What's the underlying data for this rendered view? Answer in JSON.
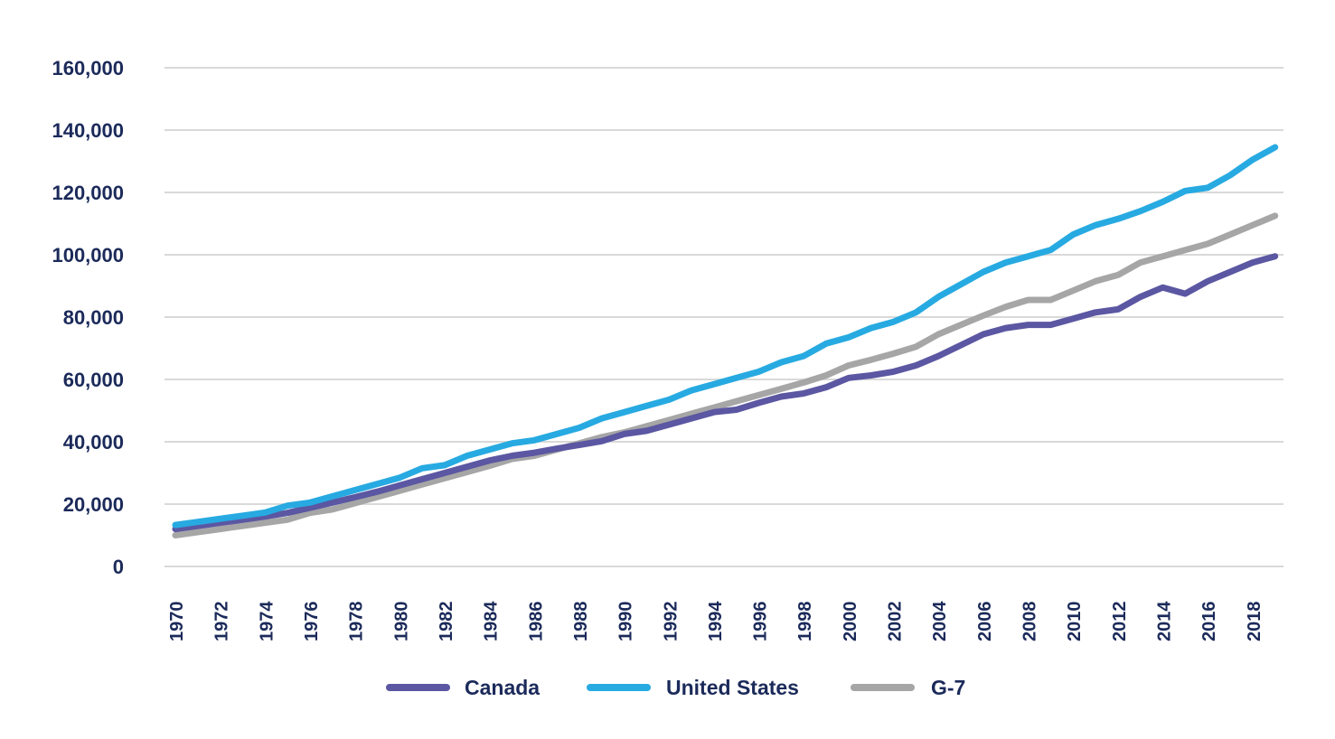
{
  "chart_data": {
    "type": "line",
    "title": "",
    "xlabel": "",
    "ylabel": "",
    "ylim": [
      0,
      160000
    ],
    "yticks": [
      0,
      20000,
      40000,
      60000,
      80000,
      100000,
      120000,
      140000,
      160000
    ],
    "ytick_labels": [
      "0",
      "20,000",
      "40,000",
      "60,000",
      "80,000",
      "100,000",
      "120,000",
      "140,000",
      "160,000"
    ],
    "xtick_labels": [
      "1970",
      "1972",
      "1974",
      "1976",
      "1978",
      "1980",
      "1982",
      "1984",
      "1986",
      "1988",
      "1990",
      "1992",
      "1994",
      "1996",
      "1998",
      "2000",
      "2002",
      "2004",
      "2006",
      "2008",
      "2010",
      "2012",
      "2014",
      "2016",
      "2018"
    ],
    "grid": true,
    "legend_position": "bottom",
    "x": [
      1970,
      1971,
      1972,
      1973,
      1974,
      1975,
      1976,
      1977,
      1978,
      1979,
      1980,
      1981,
      1982,
      1983,
      1984,
      1985,
      1986,
      1987,
      1988,
      1989,
      1990,
      1991,
      1992,
      1993,
      1994,
      1995,
      1996,
      1997,
      1998,
      1999,
      2000,
      2001,
      2002,
      2003,
      2004,
      2005,
      2006,
      2007,
      2008,
      2009,
      2010,
      2011,
      2012,
      2013,
      2014,
      2015,
      2016,
      2017,
      2018,
      2019
    ],
    "series": [
      {
        "name": "Canada",
        "color": "#5b57a2",
        "values": [
          12000,
          13000,
          14000,
          15000,
          16000,
          17200,
          18800,
          20500,
          22200,
          24000,
          26000,
          28000,
          30000,
          32000,
          34000,
          35500,
          36500,
          37800,
          39000,
          40200,
          42500,
          43500,
          45500,
          47500,
          49500,
          50300,
          52500,
          54500,
          55500,
          57500,
          60500,
          61300,
          62500,
          64500,
          67500,
          71000,
          74500,
          76500,
          77500,
          77500,
          79500,
          81500,
          82500,
          86500,
          89500,
          87500,
          91500,
          94500,
          97500,
          99500
        ]
      },
      {
        "name": "United States",
        "color": "#27aae1",
        "values": [
          13300,
          14300,
          15300,
          16300,
          17300,
          19500,
          20500,
          22500,
          24500,
          26500,
          28500,
          31500,
          32500,
          35500,
          37500,
          39500,
          40500,
          42500,
          44500,
          47500,
          49500,
          51500,
          53500,
          56500,
          58500,
          60500,
          62500,
          65500,
          67500,
          71500,
          73500,
          76500,
          78500,
          81500,
          86500,
          90500,
          94500,
          97500,
          99500,
          101500,
          106500,
          109500,
          111500,
          114000,
          117000,
          120500,
          121500,
          125500,
          130500,
          134500
        ]
      },
      {
        "name": "G-7",
        "color": "#a6a6a6",
        "values": [
          10000,
          11000,
          12000,
          13000,
          14000,
          15000,
          17200,
          18300,
          20300,
          22300,
          24300,
          26300,
          28300,
          30300,
          32300,
          34500,
          35500,
          37500,
          39500,
          41500,
          43000,
          45000,
          47000,
          49000,
          51000,
          53000,
          55000,
          57000,
          59000,
          61300,
          64500,
          66300,
          68300,
          70500,
          74500,
          77500,
          80500,
          83300,
          85500,
          85500,
          88500,
          91500,
          93500,
          97500,
          99500,
          101500,
          103500,
          106500,
          109500,
          112500
        ]
      }
    ]
  }
}
